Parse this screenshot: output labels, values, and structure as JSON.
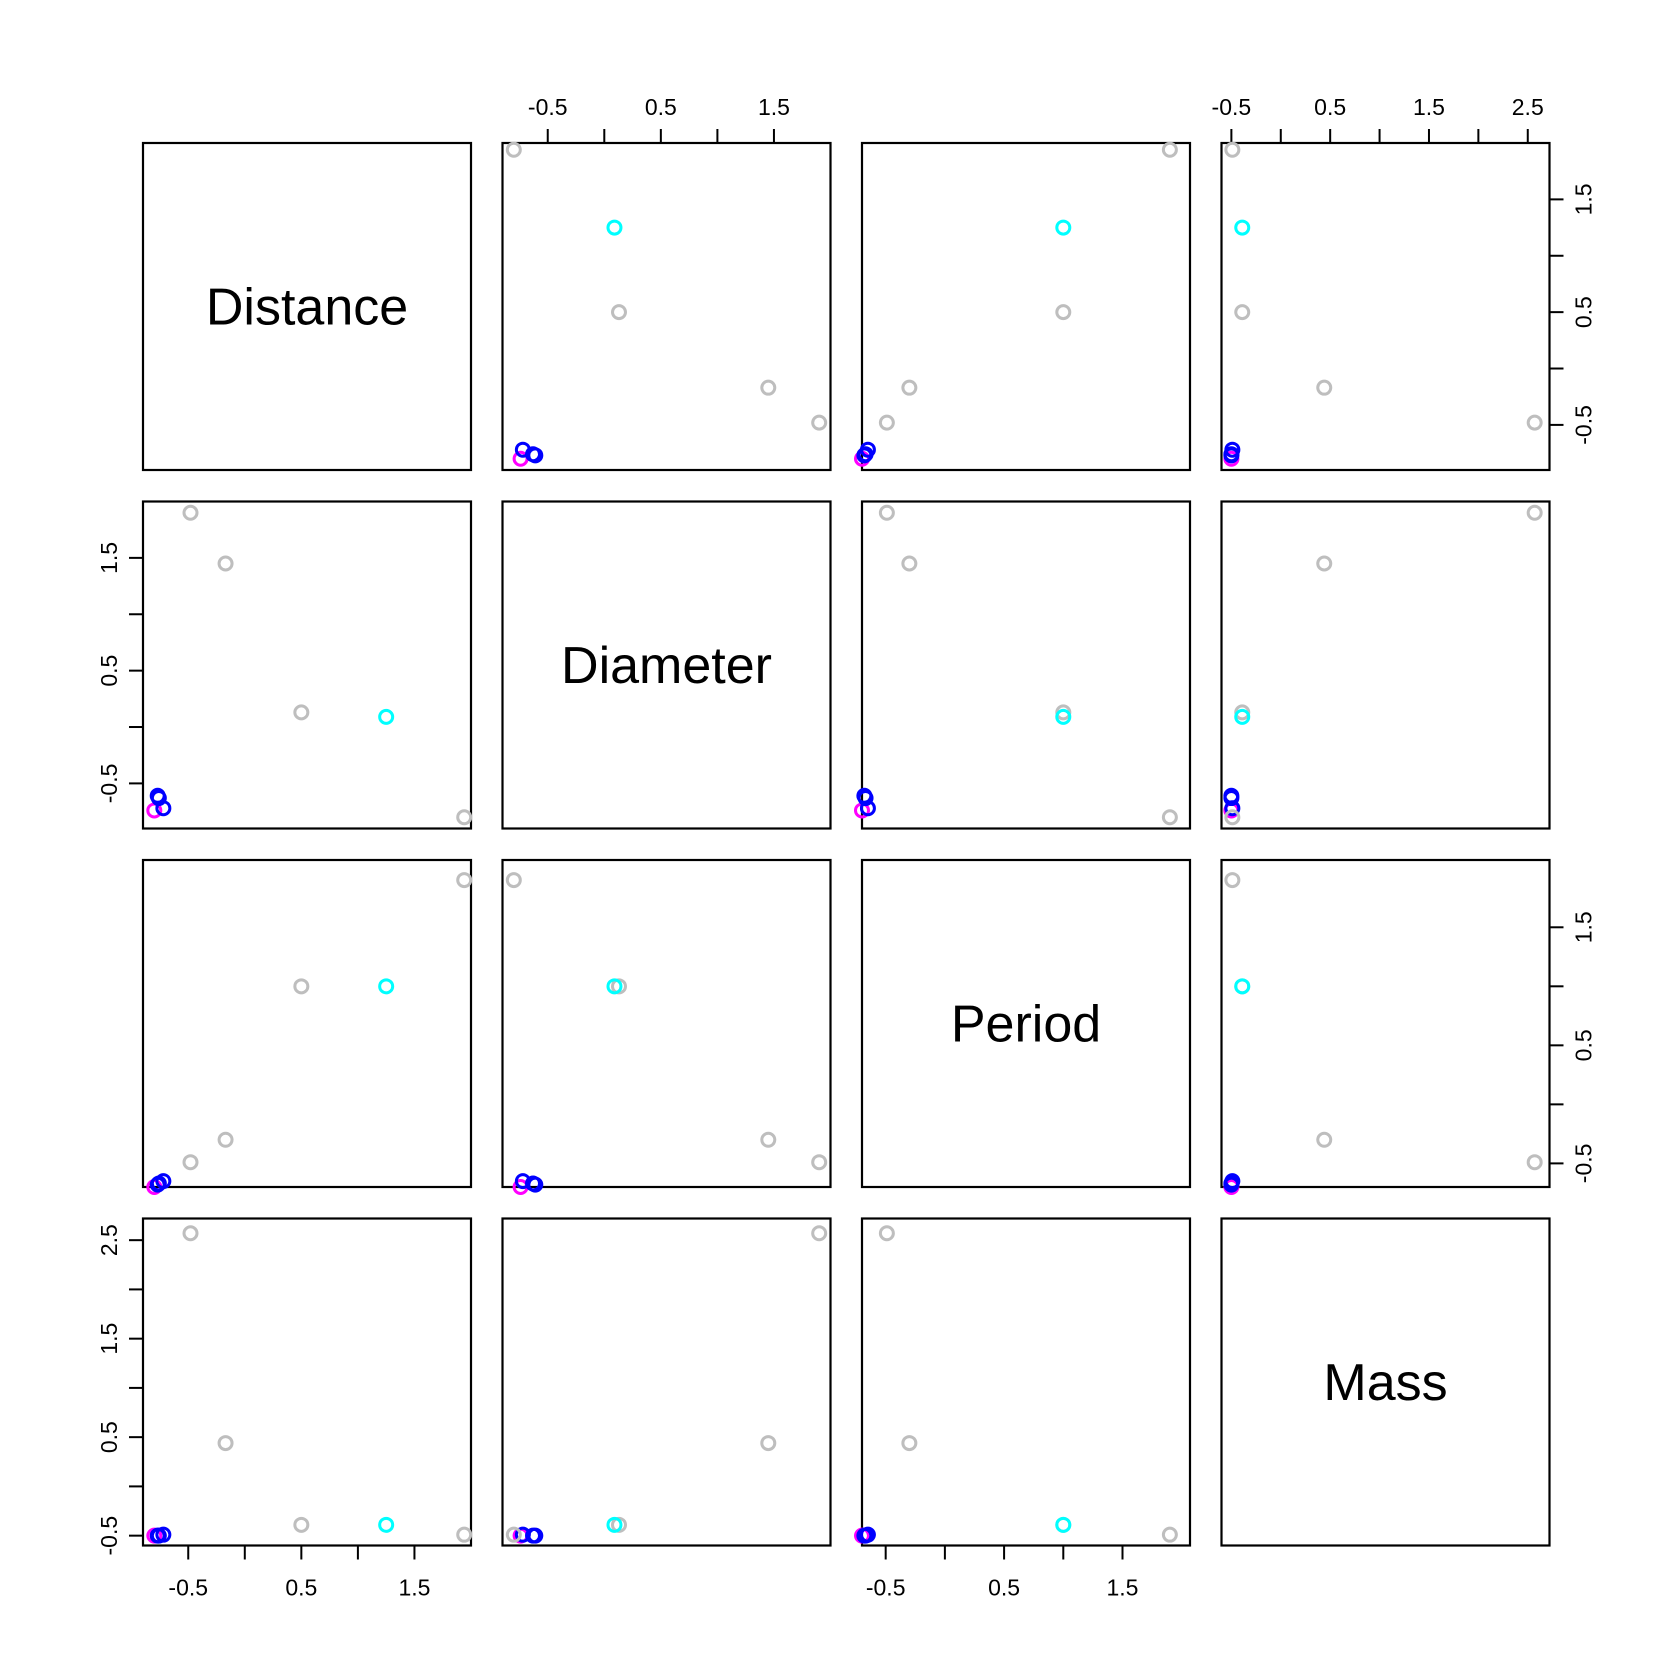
{
  "chart_data": {
    "type": "scatter",
    "subtype": "pairs-matrix",
    "variables": [
      "Distance",
      "Diameter",
      "Period",
      "Mass"
    ],
    "scales": {
      "Distance": {
        "ticks": [
          -0.5,
          0,
          0.5,
          1,
          1.5
        ],
        "tick_labels": [
          "-0.5",
          "0.5",
          "1.5"
        ],
        "range": [
          -0.9,
          2.0
        ]
      },
      "Diameter": {
        "ticks": [
          -0.5,
          0,
          0.5,
          1,
          1.5
        ],
        "tick_labels": [
          "-0.5",
          "0.5",
          "1.5"
        ],
        "range": [
          -0.9,
          2.0
        ]
      },
      "Period": {
        "ticks": [
          -0.5,
          0,
          0.5,
          1,
          1.5
        ],
        "tick_labels": [
          "-0.5",
          "0.5",
          "1.5"
        ],
        "range": [
          -0.7,
          2.07
        ]
      },
      "Mass": {
        "ticks": [
          -0.5,
          0,
          0.5,
          1,
          1.5,
          2,
          2.5
        ],
        "tick_labels": [
          "-0.5",
          "0.5",
          "1.5",
          "2.5"
        ],
        "range": [
          -0.6,
          2.72
        ]
      }
    },
    "points": [
      {
        "color": "#ff00ff",
        "Distance": -0.8,
        "Diameter": -0.74,
        "Period": -0.7,
        "Mass": -0.5
      },
      {
        "color": "#0000ff",
        "Distance": -0.77,
        "Diameter": -0.61,
        "Period": -0.68,
        "Mass": -0.5
      },
      {
        "color": "#0000ff",
        "Distance": -0.76,
        "Diameter": -0.63,
        "Period": -0.67,
        "Mass": -0.5
      },
      {
        "color": "#0000ff",
        "Distance": -0.72,
        "Diameter": -0.72,
        "Period": -0.65,
        "Mass": -0.49
      },
      {
        "color": "#bebebe",
        "Distance": -0.48,
        "Diameter": 1.9,
        "Period": -0.49,
        "Mass": 2.57
      },
      {
        "color": "#bebebe",
        "Distance": -0.17,
        "Diameter": 1.45,
        "Period": -0.3,
        "Mass": 0.44
      },
      {
        "color": "#bebebe",
        "Distance": 0.5,
        "Diameter": 0.13,
        "Period": 1.0,
        "Mass": -0.39
      },
      {
        "color": "#00ffff",
        "Distance": 1.25,
        "Diameter": 0.09,
        "Period": 1.0,
        "Mass": -0.39
      },
      {
        "color": "#bebebe",
        "Distance": 1.94,
        "Diameter": -0.8,
        "Period": 1.9,
        "Mass": -0.49
      }
    ],
    "grid": false,
    "legend": "none",
    "colors": {
      "frame": "#000000",
      "pink": "#ff00ff",
      "blue": "#0000ff",
      "cyan": "#00ffff",
      "gray": "#bebebe"
    }
  }
}
